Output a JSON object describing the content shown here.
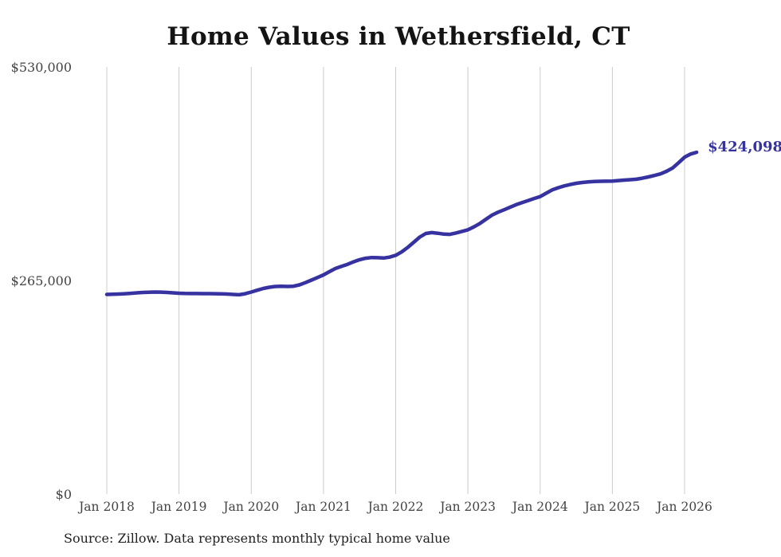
{
  "source_note": "Source: Zillow. Data represents monthly typical home value",
  "end_label": "$424,098",
  "colors": {
    "line": "#3632a0",
    "end_label": "#3632a0",
    "gridline": "#cccccc",
    "axis_text": "#434343",
    "title_text": "#141414"
  },
  "chart_data": {
    "type": "line",
    "title": "Home Values in Wethersfield, CT",
    "xlabel": "",
    "ylabel": "",
    "ylim": [
      0,
      530000
    ],
    "y_ticks": [
      0,
      265000,
      530000
    ],
    "y_tick_labels": [
      "$0",
      "$265,000",
      "$530,000"
    ],
    "x_tick_labels": [
      "Jan 2018",
      "Jan 2019",
      "Jan 2020",
      "Jan 2021",
      "Jan 2022",
      "Jan 2023",
      "Jan 2024",
      "Jan 2025",
      "Jan 2026"
    ],
    "grid": "vertical-only",
    "legend": "none",
    "series": [
      {
        "name": "Monthly typical home value",
        "months": [
          "2018-01",
          "2018-02",
          "2018-03",
          "2018-04",
          "2018-05",
          "2018-06",
          "2018-07",
          "2018-08",
          "2018-09",
          "2018-10",
          "2018-11",
          "2018-12",
          "2019-01",
          "2019-02",
          "2019-03",
          "2019-04",
          "2019-05",
          "2019-06",
          "2019-07",
          "2019-08",
          "2019-09",
          "2019-10",
          "2019-11",
          "2019-12",
          "2020-01",
          "2020-02",
          "2020-03",
          "2020-04",
          "2020-05",
          "2020-06",
          "2020-07",
          "2020-08",
          "2020-09",
          "2020-10",
          "2020-11",
          "2020-12",
          "2021-01",
          "2021-02",
          "2021-03",
          "2021-04",
          "2021-05",
          "2021-06",
          "2021-07",
          "2021-08",
          "2021-09",
          "2021-10",
          "2021-11",
          "2021-12",
          "2022-01",
          "2022-02",
          "2022-03",
          "2022-04",
          "2022-05",
          "2022-06",
          "2022-07",
          "2022-08",
          "2022-09",
          "2022-10",
          "2022-11",
          "2022-12",
          "2023-01",
          "2023-02",
          "2023-03",
          "2023-04",
          "2023-05",
          "2023-06",
          "2023-07",
          "2023-08",
          "2023-09",
          "2023-10",
          "2023-11",
          "2023-12",
          "2024-01",
          "2024-02",
          "2024-03",
          "2024-04",
          "2024-05",
          "2024-06",
          "2024-07",
          "2024-08",
          "2024-09",
          "2024-10",
          "2024-11",
          "2024-12",
          "2025-01",
          "2025-02",
          "2025-03",
          "2025-04",
          "2025-05",
          "2025-06",
          "2025-07",
          "2025-08",
          "2025-09",
          "2025-10",
          "2025-11",
          "2025-12",
          "2026-01",
          "2026-02",
          "2026-03"
        ],
        "values": [
          247700,
          247900,
          248200,
          248600,
          249100,
          249700,
          250200,
          250500,
          250700,
          250600,
          250200,
          249700,
          249200,
          248900,
          248800,
          248800,
          248700,
          248700,
          248600,
          248500,
          248200,
          247700,
          247300,
          248600,
          250700,
          252900,
          255100,
          256600,
          257600,
          257900,
          257600,
          257900,
          259600,
          262300,
          265500,
          268700,
          271900,
          276000,
          279900,
          282600,
          285100,
          288100,
          290800,
          292600,
          293500,
          293300,
          292900,
          294000,
          296200,
          300500,
          306000,
          312500,
          318900,
          323300,
          324400,
          323600,
          322500,
          322300,
          323900,
          325900,
          327900,
          331500,
          335800,
          341000,
          346100,
          349700,
          352700,
          355900,
          359000,
          361700,
          364200,
          366700,
          369100,
          373300,
          377400,
          380100,
          382400,
          384100,
          385600,
          386600,
          387300,
          387800,
          388100,
          388200,
          388400,
          389000,
          389600,
          390100,
          390700,
          392000,
          393500,
          395300,
          397300,
          400500,
          404500,
          411000,
          418000,
          421900,
          424098
        ],
        "last_value_label": "$424,098"
      }
    ]
  }
}
